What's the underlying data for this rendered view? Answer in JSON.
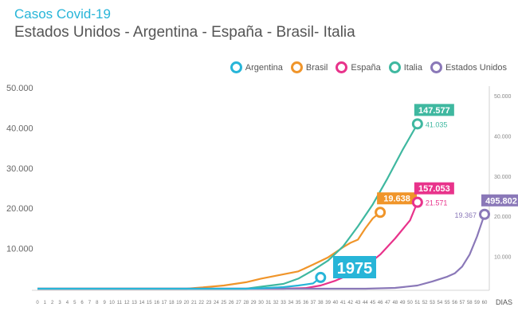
{
  "header": {
    "title": "Casos Covid-19",
    "subtitle": "Estados Unidos - Argentina - España - Brasil- Italia"
  },
  "legend": [
    {
      "label": "Argentina",
      "color": "#27b5d8"
    },
    {
      "label": "Brasil",
      "color": "#f0952a"
    },
    {
      "label": "España",
      "color": "#e8338b"
    },
    {
      "label": "Italia",
      "color": "#3fb8a0"
    },
    {
      "label": "Estados Unidos",
      "color": "#8a78b8"
    }
  ],
  "chart_data": {
    "type": "line",
    "xlabel": "DIAS",
    "x_ticks": [
      0,
      1,
      2,
      3,
      4,
      5,
      6,
      7,
      8,
      9,
      10,
      11,
      12,
      13,
      14,
      15,
      16,
      17,
      18,
      19,
      20,
      21,
      22,
      23,
      24,
      25,
      26,
      27,
      28,
      29,
      30,
      31,
      32,
      33,
      34,
      35,
      36,
      37,
      38,
      39,
      40,
      41,
      42,
      43,
      44,
      45,
      46,
      47,
      48,
      49,
      50,
      51,
      52,
      53,
      54,
      55,
      56,
      57,
      58,
      59,
      60
    ],
    "xlim": [
      0,
      60
    ],
    "left_axis": {
      "ticks": [
        "10.000",
        "20.000",
        "30.000",
        "40.000",
        "50.000"
      ],
      "values": [
        10000,
        20000,
        30000,
        40000,
        50000
      ],
      "ylim": [
        0,
        50000
      ]
    },
    "right_axis": {
      "ticks": [
        "10.000",
        "20.000",
        "30.000",
        "40.000",
        "50.000"
      ],
      "values": [
        10000,
        20000,
        30000,
        40000,
        50000
      ],
      "ylim": [
        0,
        50000
      ]
    },
    "series": [
      {
        "name": "Brasil",
        "color": "#f0952a",
        "points": [
          [
            0,
            0
          ],
          [
            20,
            0
          ],
          [
            22,
            300
          ],
          [
            25,
            800
          ],
          [
            28,
            1600
          ],
          [
            30,
            2500
          ],
          [
            33,
            3600
          ],
          [
            35,
            4300
          ],
          [
            37,
            6000
          ],
          [
            39,
            7800
          ],
          [
            41,
            10300
          ],
          [
            42,
            11400
          ],
          [
            43,
            12200
          ],
          [
            44,
            15000
          ],
          [
            45,
            17500
          ],
          [
            46,
            19000
          ]
        ],
        "end_label": "19.638",
        "end_sub": ""
      },
      {
        "name": "Italia",
        "color": "#3fb8a0",
        "points": [
          [
            0,
            0
          ],
          [
            28,
            0
          ],
          [
            30,
            500
          ],
          [
            33,
            1200
          ],
          [
            35,
            2500
          ],
          [
            37,
            4600
          ],
          [
            39,
            7000
          ],
          [
            41,
            10500
          ],
          [
            43,
            15500
          ],
          [
            45,
            21000
          ],
          [
            47,
            27500
          ],
          [
            49,
            34500
          ],
          [
            51,
            41000
          ]
        ],
        "end_label": "147.577",
        "end_sub": "41.035"
      },
      {
        "name": "España",
        "color": "#e8338b",
        "points": [
          [
            0,
            0
          ],
          [
            33,
            0
          ],
          [
            36,
            150
          ],
          [
            38,
            800
          ],
          [
            40,
            2000
          ],
          [
            42,
            3600
          ],
          [
            44,
            5500
          ],
          [
            46,
            8500
          ],
          [
            48,
            12500
          ],
          [
            50,
            17000
          ],
          [
            51,
            21500
          ]
        ],
        "end_label": "157.053",
        "end_sub": "21.571"
      },
      {
        "name": "Estados Unidos",
        "color": "#8a78b8",
        "points": [
          [
            0,
            0
          ],
          [
            44,
            0
          ],
          [
            48,
            200
          ],
          [
            51,
            800
          ],
          [
            53,
            1800
          ],
          [
            55,
            3000
          ],
          [
            56,
            3800
          ],
          [
            57,
            5500
          ],
          [
            58,
            8500
          ],
          [
            59,
            13000
          ],
          [
            60,
            18500
          ]
        ],
        "end_label": "495.802",
        "end_sub": "19.367"
      },
      {
        "name": "Argentina",
        "color": "#27b5d8",
        "points": [
          [
            0,
            0
          ],
          [
            28,
            0
          ],
          [
            30,
            100
          ],
          [
            33,
            400
          ],
          [
            35,
            800
          ],
          [
            37,
            1300
          ],
          [
            38,
            2800
          ]
        ],
        "end_label": "1975",
        "end_sub": ""
      }
    ]
  }
}
